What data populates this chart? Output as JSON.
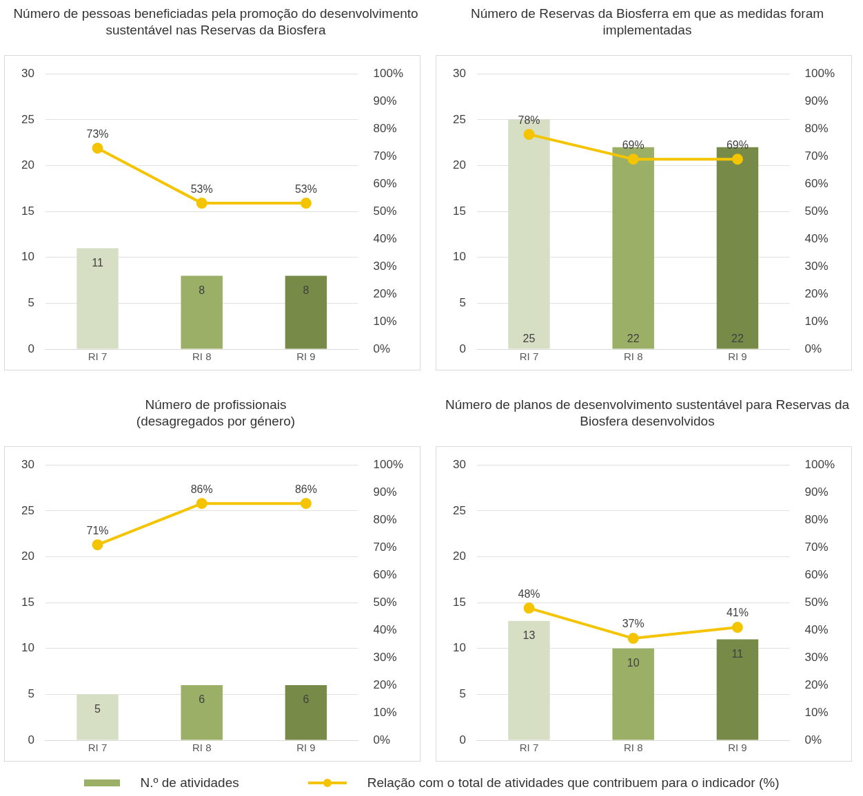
{
  "chart_data": [
    {
      "type": "bar",
      "title": "Número de pessoas beneficiadas pela promoção do desenvolvimento sustentável nas Reservas da Biosfera",
      "categories": [
        "RI 7",
        "RI 8",
        "RI 9"
      ],
      "series": [
        {
          "colors": [
            "#d6dfc4",
            "#9bb066",
            "#778a47"
          ],
          "values": [
            11,
            8,
            8
          ],
          "value_labels": [
            "11",
            "8",
            "8"
          ]
        },
        {
          "type": "line",
          "axis": "y2",
          "color": "#f5c400",
          "values": [
            73,
            53,
            53
          ],
          "value_labels": [
            "73%",
            "53%",
            "53%"
          ]
        }
      ],
      "ylim": [
        0,
        30
      ],
      "yticks": [
        0,
        5,
        10,
        15,
        20,
        25,
        30
      ],
      "y2lim": [
        0,
        100
      ],
      "y2ticks": [
        {
          "value": 0,
          "label": "0%"
        },
        {
          "value": 10,
          "label": "10%"
        },
        {
          "value": 20,
          "label": "20%"
        },
        {
          "value": 30,
          "label": "30%"
        },
        {
          "value": 40,
          "label": "40%"
        },
        {
          "value": 50,
          "label": "50%"
        },
        {
          "value": 60,
          "label": "60%"
        },
        {
          "value": 70,
          "label": "70%"
        },
        {
          "value": 80,
          "label": "80%"
        },
        {
          "value": 90,
          "label": "90%"
        },
        {
          "value": 100,
          "label": "100%"
        }
      ],
      "grid": "y",
      "marker": "circle"
    },
    {
      "type": "bar",
      "title": "Número de Reservas da Biosferra em que as medidas foram implementadas",
      "categories": [
        "RI 7",
        "RI 8",
        "RI 9"
      ],
      "series": [
        {
          "colors": [
            "#d6dfc4",
            "#9bb066",
            "#778a47"
          ],
          "values": [
            25,
            22,
            22
          ],
          "value_labels": [
            "25",
            "22",
            "22"
          ]
        },
        {
          "type": "line",
          "axis": "y2",
          "color": "#f5c400",
          "values": [
            78,
            69,
            69
          ],
          "value_labels": [
            "78%",
            "69%",
            "69%"
          ]
        }
      ],
      "ylim": [
        0,
        30
      ],
      "yticks": [
        0,
        5,
        10,
        15,
        20,
        25,
        30
      ],
      "y2lim": [
        0,
        100
      ],
      "y2ticks": [
        {
          "value": 0,
          "label": "0%"
        },
        {
          "value": 10,
          "label": "10%"
        },
        {
          "value": 20,
          "label": "20%"
        },
        {
          "value": 30,
          "label": "30%"
        },
        {
          "value": 40,
          "label": "40%"
        },
        {
          "value": 50,
          "label": "50%"
        },
        {
          "value": 60,
          "label": "60%"
        },
        {
          "value": 70,
          "label": "70%"
        },
        {
          "value": 80,
          "label": "80%"
        },
        {
          "value": 90,
          "label": "90%"
        },
        {
          "value": 100,
          "label": "100%"
        }
      ],
      "grid": "y",
      "marker": "circle"
    },
    {
      "type": "bar",
      "title": "Número de profissionais\n(desagregados por género)",
      "categories": [
        "RI 7",
        "RI 8",
        "RI 9"
      ],
      "series": [
        {
          "colors": [
            "#d6dfc4",
            "#9bb066",
            "#778a47"
          ],
          "values": [
            5,
            6,
            6
          ],
          "value_labels": [
            "5",
            "6",
            "6"
          ]
        },
        {
          "type": "line",
          "axis": "y2",
          "color": "#f5c400",
          "values": [
            71,
            86,
            86
          ],
          "value_labels": [
            "71%",
            "86%",
            "86%"
          ]
        }
      ],
      "ylim": [
        0,
        30
      ],
      "yticks": [
        0,
        5,
        10,
        15,
        20,
        25,
        30
      ],
      "y2lim": [
        0,
        100
      ],
      "y2ticks": [
        {
          "value": 0,
          "label": "0%"
        },
        {
          "value": 10,
          "label": "10%"
        },
        {
          "value": 20,
          "label": "20%"
        },
        {
          "value": 30,
          "label": "30%"
        },
        {
          "value": 40,
          "label": "40%"
        },
        {
          "value": 50,
          "label": "50%"
        },
        {
          "value": 60,
          "label": "60%"
        },
        {
          "value": 70,
          "label": "70%"
        },
        {
          "value": 80,
          "label": "80%"
        },
        {
          "value": 90,
          "label": "90%"
        },
        {
          "value": 100,
          "label": "100%"
        }
      ],
      "grid": "y",
      "marker": "circle"
    },
    {
      "type": "bar",
      "title": "Número de planos de desenvolvimento sustentável para Reservas da Biosfera desenvolvidos",
      "categories": [
        "RI 7",
        "RI 8",
        "RI 9"
      ],
      "series": [
        {
          "name": "N.º de atividades",
          "color": "#9bb066",
          "colors": [
            "#d6dfc4",
            "#9bb066",
            "#778a47"
          ],
          "values": [
            13,
            10,
            11
          ],
          "value_labels": [
            "13",
            "10",
            "11"
          ]
        },
        {
          "type": "line",
          "axis": "y2",
          "name": "Relação com o total de atividades que contribuem para o indicador (%)",
          "color": "#f5c400",
          "values": [
            48,
            37,
            41
          ],
          "value_labels": [
            "48%",
            "37%",
            "41%"
          ]
        }
      ],
      "ylim": [
        0,
        30
      ],
      "yticks": [
        0,
        5,
        10,
        15,
        20,
        25,
        30
      ],
      "y2lim": [
        0,
        100
      ],
      "y2ticks": [
        {
          "value": 0,
          "label": "0%"
        },
        {
          "value": 10,
          "label": "10%"
        },
        {
          "value": 20,
          "label": "20%"
        },
        {
          "value": 30,
          "label": "30%"
        },
        {
          "value": 40,
          "label": "40%"
        },
        {
          "value": 50,
          "label": "50%"
        },
        {
          "value": 60,
          "label": "60%"
        },
        {
          "value": 70,
          "label": "70%"
        },
        {
          "value": 80,
          "label": "80%"
        },
        {
          "value": 90,
          "label": "90%"
        },
        {
          "value": 100,
          "label": "100%"
        }
      ],
      "grid": "y",
      "marker": "circle",
      "legend": "bottom"
    }
  ]
}
